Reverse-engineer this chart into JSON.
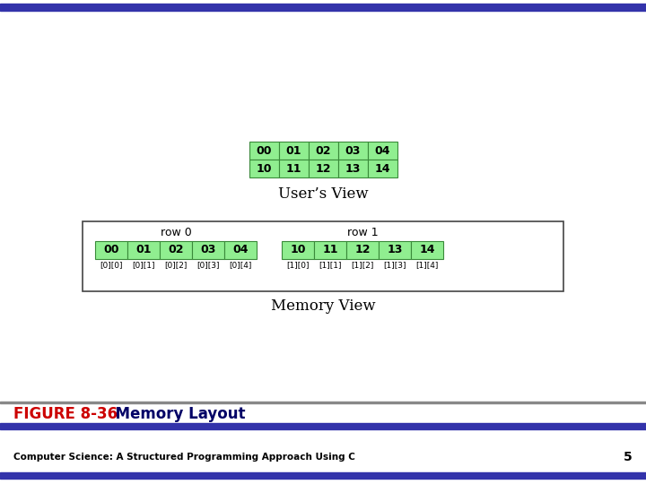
{
  "subtitle": "Computer Science: A Structured Programming Approach Using C",
  "page_num": "5",
  "cell_fill": "#90EE90",
  "cell_edge": "#3a8a3a",
  "background": "#ffffff",
  "bar_color": "#3333aa",
  "figure_label_color": "#cc0000",
  "figure_title_color": "#000066",
  "users_view_row0": [
    "00",
    "01",
    "02",
    "03",
    "04"
  ],
  "users_view_row1": [
    "10",
    "11",
    "12",
    "13",
    "14"
  ],
  "memory_view_row0": [
    "00",
    "01",
    "02",
    "03",
    "04"
  ],
  "memory_view_row1": [
    "10",
    "11",
    "12",
    "13",
    "14"
  ],
  "memory_view_labels0": [
    "[0][0]",
    "[0][1]",
    "[0][2]",
    "[0][3]",
    "[0][4]"
  ],
  "memory_view_labels1": [
    "[1][0]",
    "[1][1]",
    "[1][2]",
    "[1][3]",
    "[1][4]"
  ],
  "users_view_caption": "User’s View",
  "memory_view_caption": "Memory View",
  "row0_label": "row 0",
  "row1_label": "row 1",
  "figure_label": "FIGURE 8-36",
  "figure_title": "  Memory Layout"
}
